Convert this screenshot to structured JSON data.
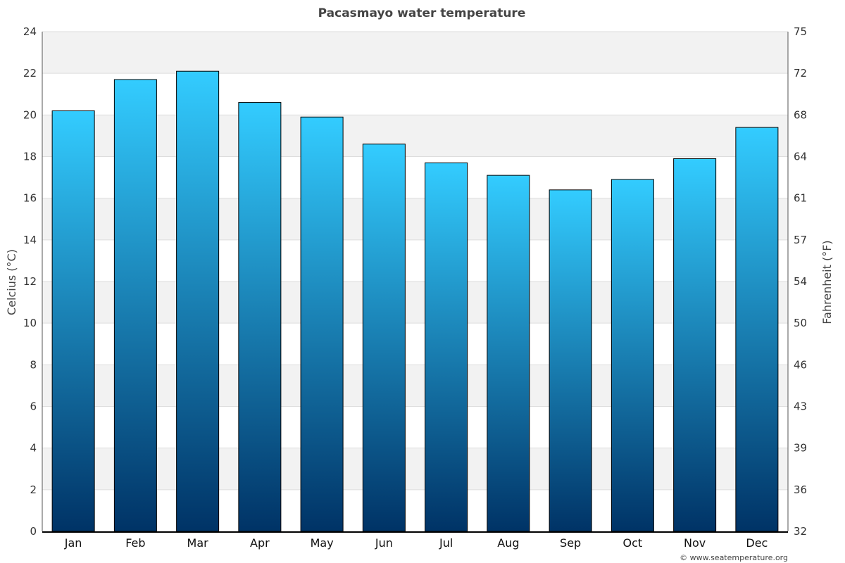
{
  "chart_data": {
    "type": "bar",
    "title": "Pacasmayo water temperature",
    "categories": [
      "Jan",
      "Feb",
      "Mar",
      "Apr",
      "May",
      "Jun",
      "Jul",
      "Aug",
      "Sep",
      "Oct",
      "Nov",
      "Dec"
    ],
    "values": [
      20.2,
      21.7,
      22.1,
      20.6,
      19.9,
      18.6,
      17.7,
      17.1,
      16.4,
      16.9,
      17.9,
      19.4
    ],
    "ylabel": "Celcius (°C)",
    "y2label": "Fahrenheit (°F)",
    "ylim": [
      0,
      24
    ],
    "y_ticks": [
      "0",
      "2",
      "4",
      "6",
      "8",
      "10",
      "12",
      "14",
      "16",
      "18",
      "20",
      "22",
      "24"
    ],
    "y2_ticks": [
      "32",
      "36",
      "39",
      "43",
      "46",
      "50",
      "54",
      "57",
      "61",
      "64",
      "68",
      "72",
      "75"
    ],
    "grid": true,
    "banded_background": true,
    "colors": {
      "bar_top": "#33ccff",
      "bar_bottom": "#003366",
      "band": "#f2f2f2",
      "title": "#444444"
    }
  },
  "credit": "© www.seatemperature.org"
}
